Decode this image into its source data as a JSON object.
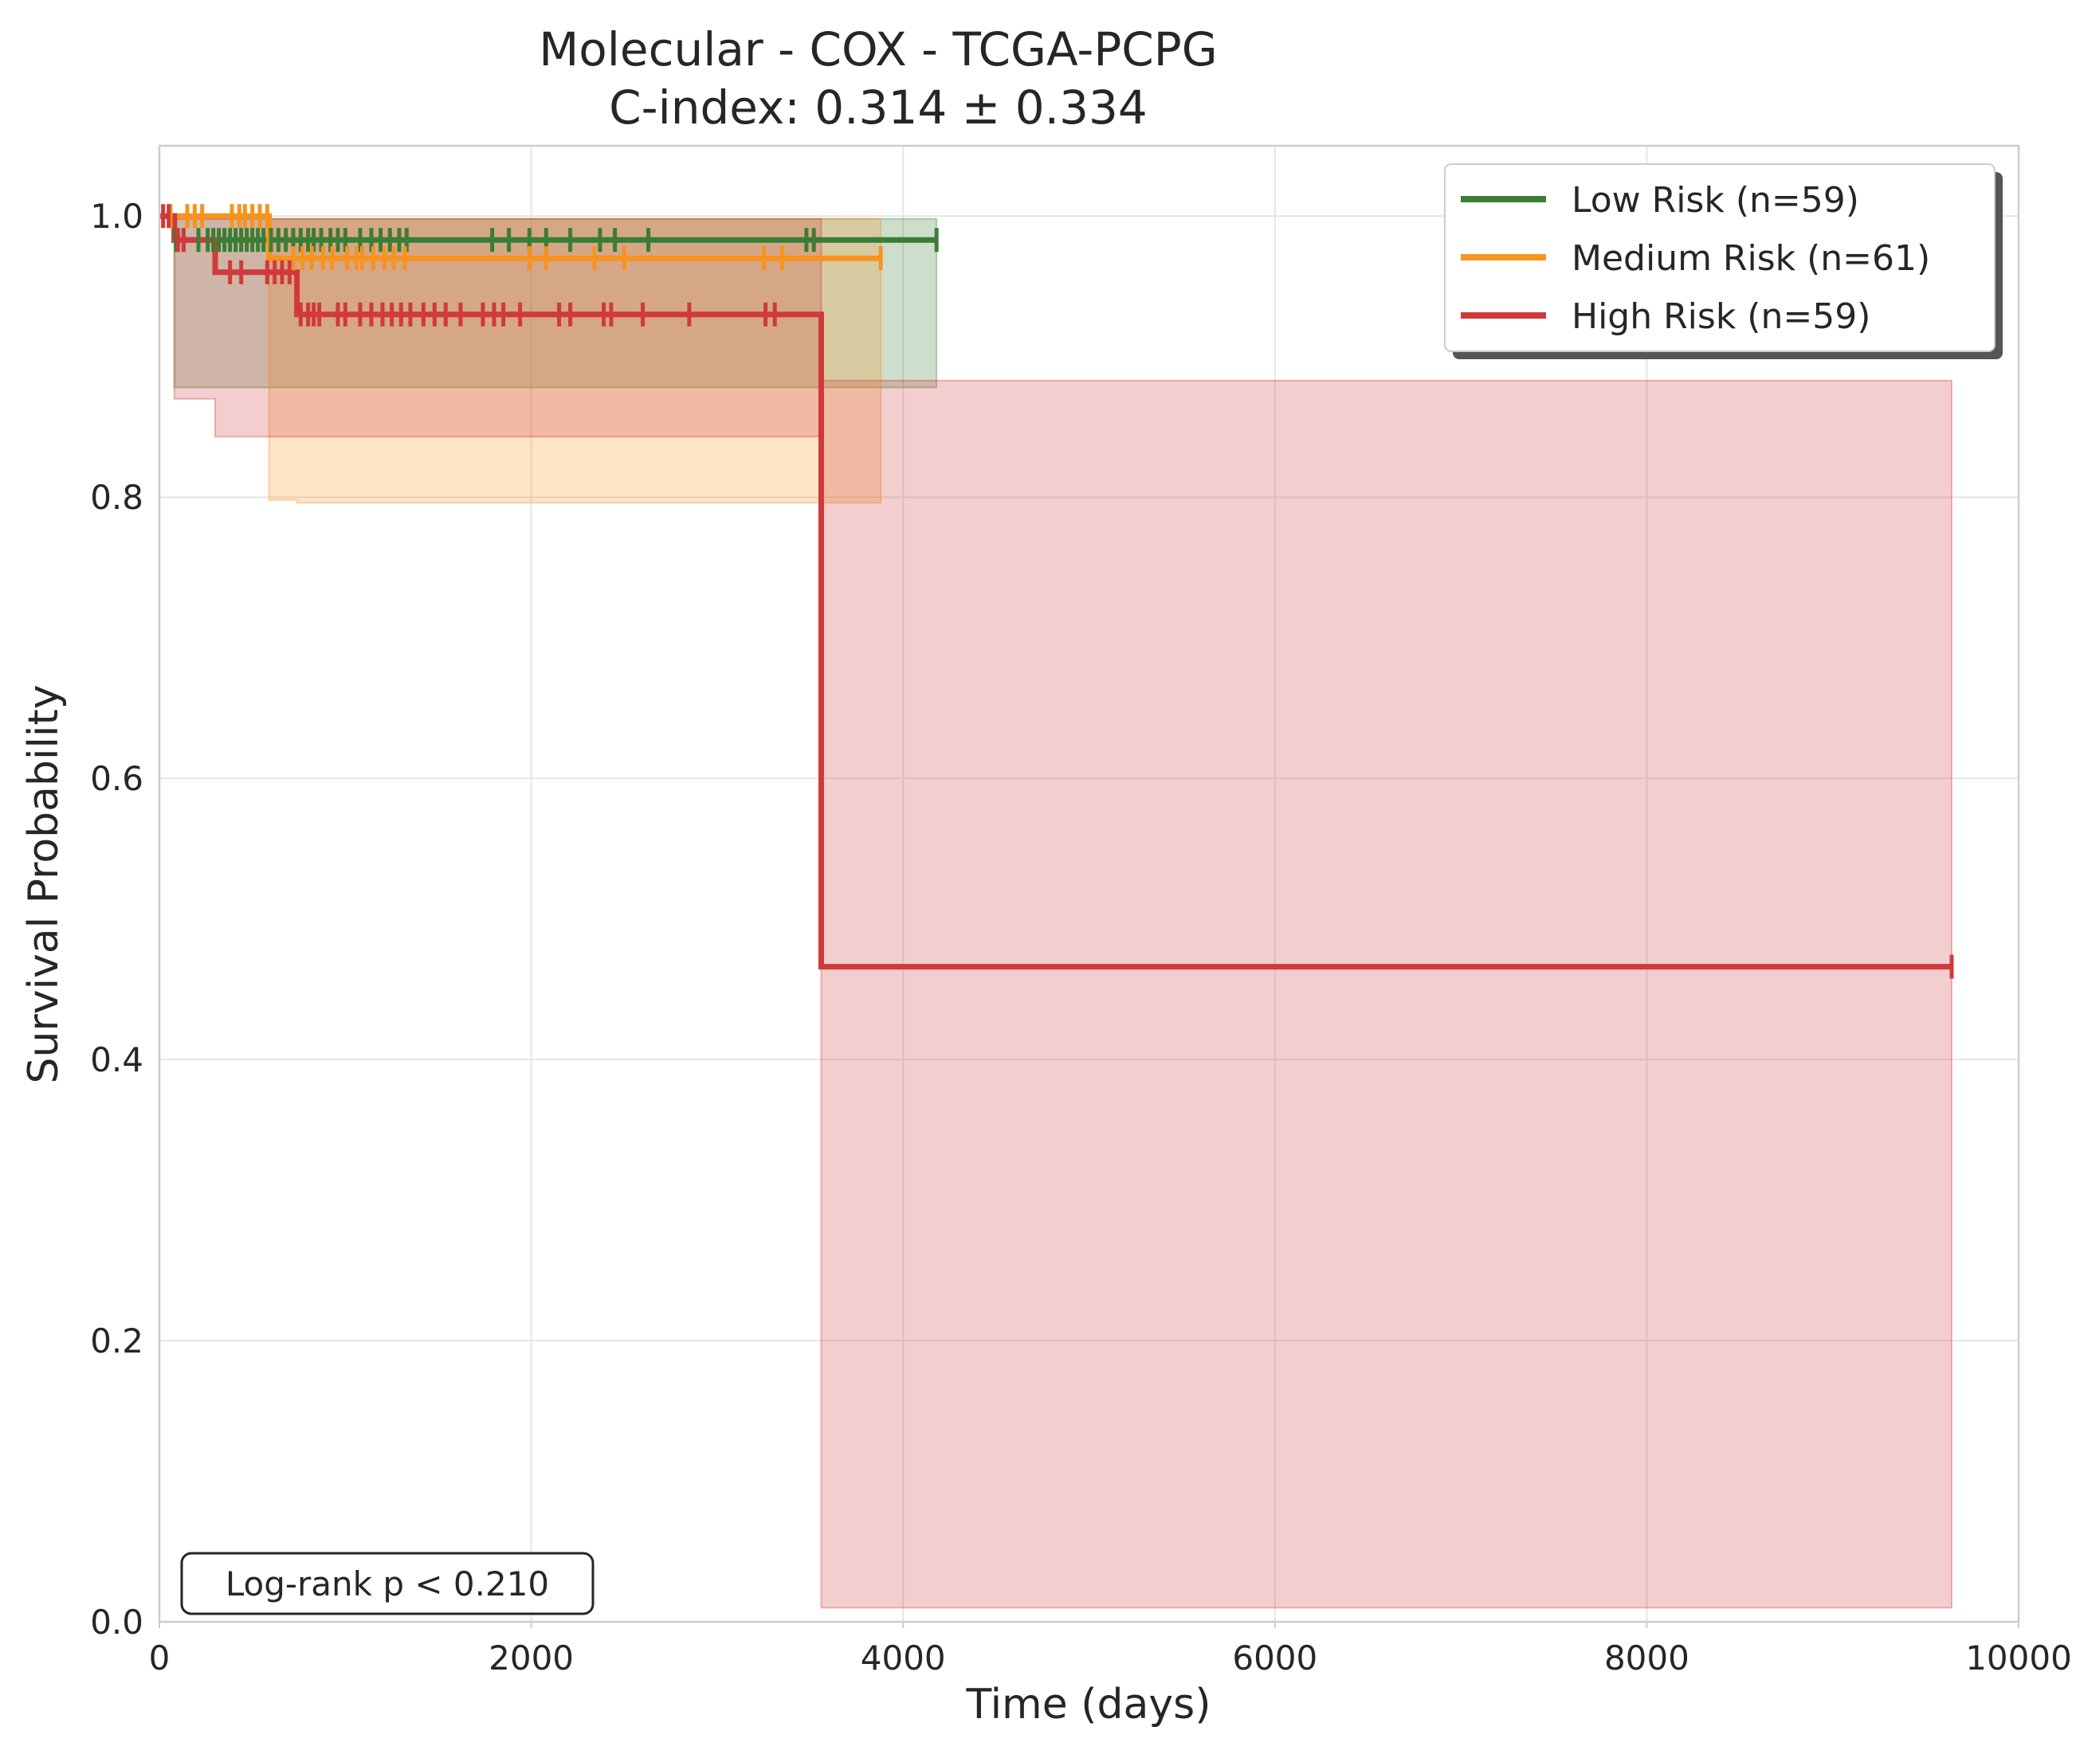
{
  "chart_data": {
    "type": "line",
    "title": "Molecular - COX - TCGA-PCPG",
    "subtitle": "C-index: 0.314 ± 0.334",
    "xlabel": "Time (days)",
    "ylabel": "Survival Probability",
    "xlim": [
      0,
      10000
    ],
    "ylim": [
      0,
      1.05
    ],
    "x_ticks": [
      {
        "value": 0,
        "label": "0"
      },
      {
        "value": 2000,
        "label": "2000"
      },
      {
        "value": 4000,
        "label": "4000"
      },
      {
        "value": 6000,
        "label": "6000"
      },
      {
        "value": 8000,
        "label": "8000"
      },
      {
        "value": 10000,
        "label": "10000"
      }
    ],
    "y_ticks": [
      {
        "value": 0.0,
        "label": "0.0"
      },
      {
        "value": 0.2,
        "label": "0.2"
      },
      {
        "value": 0.4,
        "label": "0.4"
      },
      {
        "value": 0.6,
        "label": "0.6"
      },
      {
        "value": 0.8,
        "label": "0.8"
      },
      {
        "value": 1.0,
        "label": "1.0"
      }
    ],
    "grid": true,
    "legend_position": "top-right",
    "annotation": "Log-rank p < 0.210",
    "series": [
      {
        "name": "Low Risk (n=59)",
        "color": "#3a7d34",
        "steps": [
          [
            0,
            1.0
          ],
          [
            80,
            0.983
          ],
          [
            4180,
            0.983
          ]
        ],
        "ci": [
          [
            0,
            1.0,
            1.0
          ],
          [
            80,
            0.878,
            0.998
          ],
          [
            4180,
            0.878,
            0.998
          ]
        ],
        "censored": [
          90,
          130,
          210,
          260,
          290,
          320,
          350,
          380,
          410,
          440,
          470,
          500,
          530,
          560,
          600,
          640,
          680,
          720,
          760,
          800,
          830,
          870,
          920,
          960,
          1000,
          1080,
          1140,
          1190,
          1240,
          1290,
          1330,
          1790,
          1880,
          1990,
          2080,
          2210,
          2370,
          2450,
          2630,
          3480,
          3520,
          4180
        ]
      },
      {
        "name": "Medium Risk (n=61)",
        "color": "#f7931e",
        "steps": [
          [
            0,
            1.0
          ],
          [
            590,
            0.97
          ],
          [
            3880,
            0.97
          ]
        ],
        "ci": [
          [
            0,
            1.0,
            1.0
          ],
          [
            590,
            0.798,
            0.998
          ],
          [
            740,
            0.796,
            0.998
          ],
          [
            3880,
            0.796,
            0.998
          ]
        ],
        "censored": [
          60,
          150,
          190,
          230,
          390,
          430,
          460,
          500,
          540,
          580,
          720,
          770,
          820,
          880,
          930,
          1010,
          1060,
          1090,
          1150,
          1210,
          1260,
          1320,
          1990,
          2080,
          2340,
          2500,
          3250,
          3350,
          3880
        ]
      },
      {
        "name": "High Risk (n=59)",
        "color": "#d03a3a",
        "steps": [
          [
            0,
            1.0
          ],
          [
            80,
            0.983
          ],
          [
            300,
            0.96
          ],
          [
            740,
            0.93
          ],
          [
            3560,
            0.93
          ],
          [
            3560,
            0.466
          ],
          [
            9640,
            0.466
          ]
        ],
        "ci": [
          [
            0,
            1.0,
            1.0
          ],
          [
            80,
            0.87,
            0.998
          ],
          [
            300,
            0.843,
            0.998
          ],
          [
            740,
            0.843,
            0.998
          ],
          [
            3560,
            0.01,
            0.883
          ],
          [
            9640,
            0.01,
            0.883
          ]
        ],
        "censored": [
          20,
          50,
          100,
          130,
          380,
          440,
          580,
          620,
          660,
          700,
          760,
          800,
          830,
          860,
          960,
          1000,
          1080,
          1140,
          1200,
          1250,
          1300,
          1350,
          1420,
          1480,
          1540,
          1620,
          1740,
          1800,
          1850,
          1940,
          2150,
          2210,
          2390,
          2430,
          2600,
          2850,
          3260,
          3310,
          9640
        ]
      }
    ]
  }
}
